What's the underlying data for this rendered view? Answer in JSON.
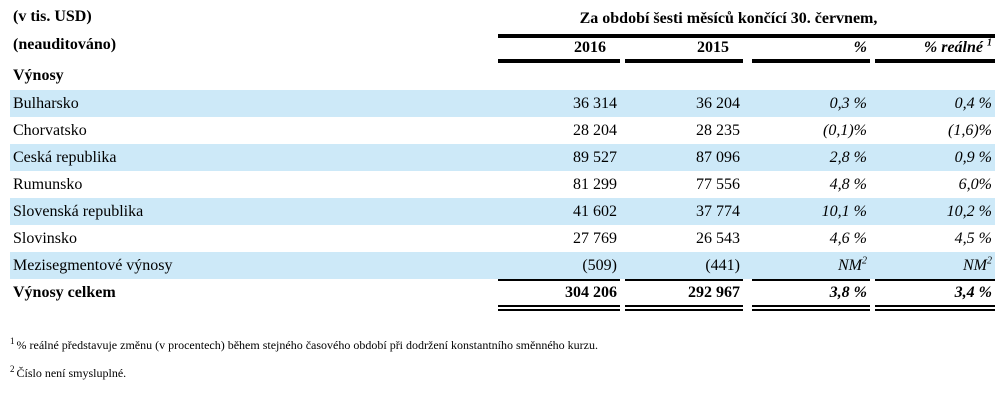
{
  "table": {
    "unit_label": "(v tis. USD)",
    "audit_label": "(neauditováno)",
    "period_header": "Za období šesti měsíců končící 30. červnem,",
    "columns": [
      {
        "label": "2016"
      },
      {
        "label": "2015"
      },
      {
        "label": "%"
      },
      {
        "label": "% reálné",
        "sup": "1"
      }
    ],
    "section_header": "Výnosy",
    "rows": [
      {
        "label": "Bulharsko",
        "v2016": "36 314",
        "v2015": "36 204",
        "pct": "0,3 %",
        "pct_real": "0,4 %",
        "shaded": true
      },
      {
        "label": "Chorvatsko",
        "v2016": "28 204",
        "v2015": "28 235",
        "pct": "(0,1)%",
        "pct_real": "(1,6)%",
        "shaded": false
      },
      {
        "label": "Ceská republika",
        "v2016": "89 527",
        "v2015": "87 096",
        "pct": "2,8 %",
        "pct_real": "0,9 %",
        "shaded": true
      },
      {
        "label": "Rumunsko",
        "v2016": "81 299",
        "v2015": "77 556",
        "pct": "4,8 %",
        "pct_real": "6,0%",
        "shaded": false
      },
      {
        "label": "Slovenská republika",
        "v2016": "41 602",
        "v2015": "37 774",
        "pct": "10,1 %",
        "pct_real": "10,2 %",
        "shaded": true
      },
      {
        "label": "Slovinsko",
        "v2016": "27 769",
        "v2015": "26 543",
        "pct": "4,6 %",
        "pct_real": "4,5 %",
        "shaded": false
      },
      {
        "label": "Mezisegmentové výnosy",
        "v2016": "(509)",
        "v2015": "(441)",
        "pct": "NM",
        "pct_real": "NM",
        "pct_sup": "2",
        "shaded": true
      }
    ],
    "total": {
      "label": "Výnosy celkem",
      "v2016": "304 206",
      "v2015": "292 967",
      "pct": "3,8 %",
      "pct_real": "3,4 %"
    }
  },
  "footnotes": [
    {
      "marker": "1",
      "text": "% reálné představuje změnu (v procentech) během stejného časového období při dodržení konstantního směnného kurzu."
    },
    {
      "marker": "2",
      "text": "Číslo není smysluplné."
    }
  ],
  "colors": {
    "row_band": "#cde9f8",
    "rule": "#000000",
    "text": "#000000"
  }
}
